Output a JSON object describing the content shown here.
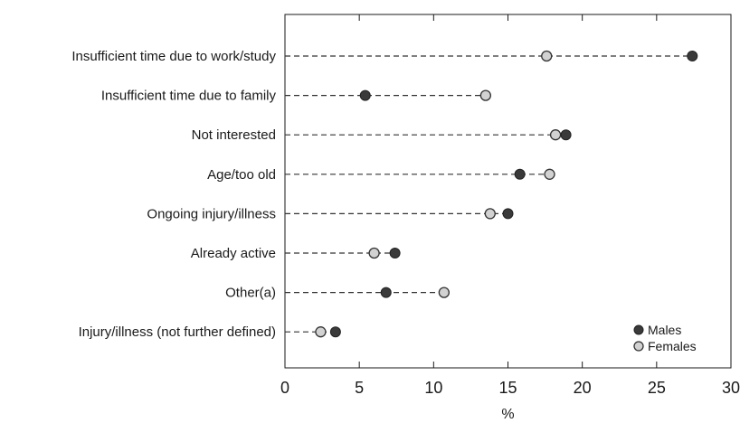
{
  "chart_data": {
    "type": "scatter",
    "title": "",
    "xlabel": "%",
    "ylabel": "",
    "xlim": [
      0,
      30
    ],
    "x_ticks": [
      "0",
      "5",
      "10",
      "15",
      "20",
      "25",
      "30"
    ],
    "grid": false,
    "legend_position": "bottom-right",
    "categories": [
      "Insufficient time due to work/study",
      "Insufficient time due to family",
      "Not interested",
      "Age/too old",
      "Ongoing injury/illness",
      "Already active",
      "Other(a)",
      "Injury/illness (not further defined)"
    ],
    "series": [
      {
        "name": "Males",
        "color": "#3a3a3a",
        "values": [
          27.4,
          5.4,
          18.9,
          15.8,
          15.0,
          7.4,
          6.8,
          3.4
        ]
      },
      {
        "name": "Females",
        "color": "#d2d2d2",
        "values": [
          17.6,
          13.5,
          18.2,
          17.8,
          13.8,
          6.0,
          10.7,
          2.4
        ]
      }
    ]
  }
}
